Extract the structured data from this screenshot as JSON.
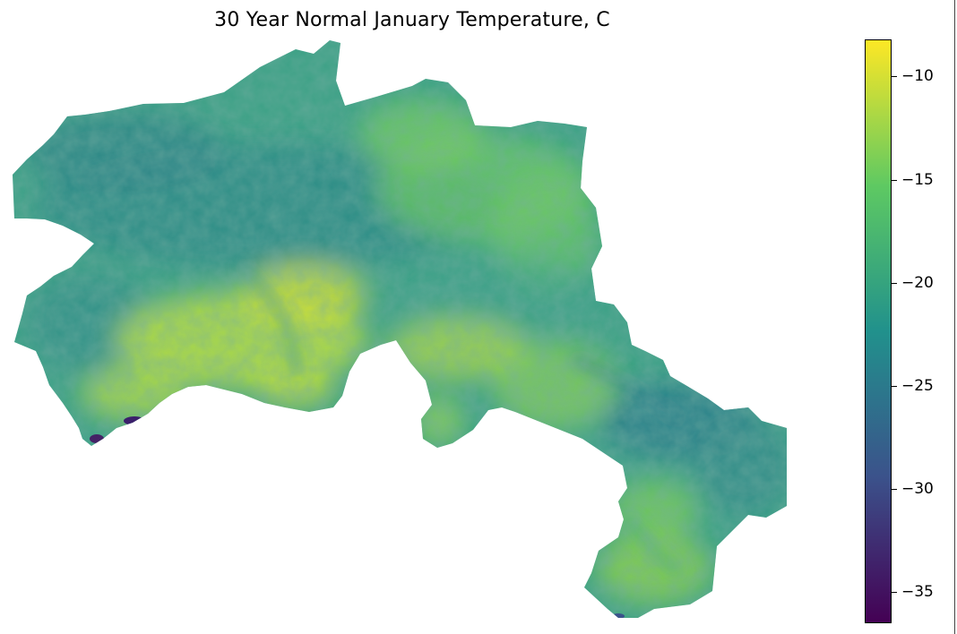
{
  "title": "30 Year Normal January Temperature, C",
  "colorbar": {
    "colormap": "viridis",
    "vmin": -36.5,
    "vmax": -8.2,
    "ticks": [
      {
        "value": -10,
        "label": "−10"
      },
      {
        "value": -15,
        "label": "−15"
      },
      {
        "value": -20,
        "label": "−20"
      },
      {
        "value": -25,
        "label": "−25"
      },
      {
        "value": -30,
        "label": "−30"
      },
      {
        "value": -35,
        "label": "−35"
      }
    ],
    "stops": [
      "#440154",
      "#3b528b",
      "#21918c",
      "#5ec962",
      "#fde725"
    ]
  }
}
